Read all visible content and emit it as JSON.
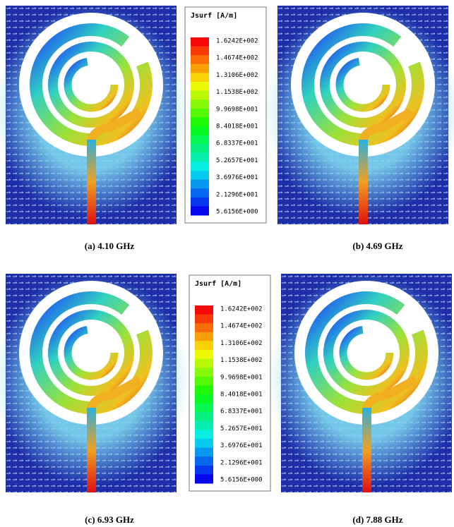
{
  "panels": [
    {
      "caption": "(a)  4.10 GHz"
    },
    {
      "caption": "(b) 4.69 GHz"
    },
    {
      "caption": "(c) 6.93 GHz"
    },
    {
      "caption": "(d) 7.88 GHz"
    }
  ],
  "legends": [
    {
      "title": "Jsurf [A/m]",
      "labels": [
        "1.6242E+002",
        "1.4674E+002",
        "1.3106E+002",
        "1.1538E+002",
        "9.9698E+001",
        "8.4018E+001",
        "6.8337E+001",
        "5.2657E+001",
        "3.6976E+001",
        "2.1296E+001",
        "5.6156E+000"
      ]
    },
    {
      "title": "Jsurf [A/m]",
      "labels": [
        "1.6242E+002",
        "1.4674E+002",
        "1.3106E+002",
        "1.1538E+002",
        "9.9698E+001",
        "8.4018E+001",
        "6.8337E+001",
        "5.2657E+001",
        "3.6976E+001",
        "2.1296E+001",
        "5.6156E+000"
      ]
    }
  ]
}
